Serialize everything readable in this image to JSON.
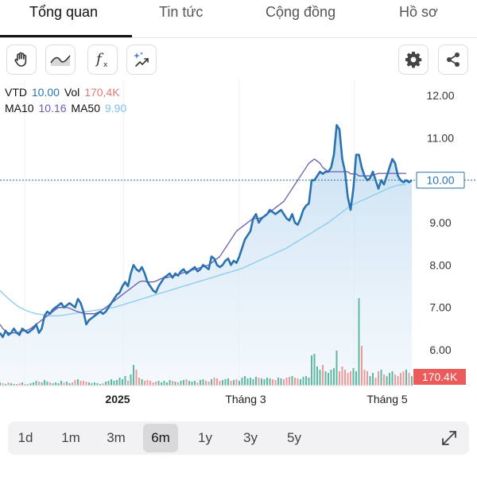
{
  "tabs": [
    {
      "label": "Tổng quan",
      "active": true
    },
    {
      "label": "Tin tức",
      "active": false
    },
    {
      "label": "Cộng đồng",
      "active": false
    },
    {
      "label": "Hồ sơ",
      "active": false
    }
  ],
  "toolbar": {
    "left_icons": [
      "hand-icon",
      "area-chart-icon",
      "function-icon",
      "sparkle-chart-icon"
    ],
    "right_icons": [
      "gear-icon",
      "share-icon"
    ]
  },
  "legend": {
    "symbol": "VTD",
    "price": "10.00",
    "vol_label": "Vol",
    "vol": "170,4K",
    "ma10_label": "MA10",
    "ma10": "10.16",
    "ma50_label": "MA50",
    "ma50": "9.90"
  },
  "chart_data": {
    "type": "line",
    "y_axis_ticks": [
      "12.00",
      "11.00",
      "10.00",
      "9.00",
      "8.00",
      "7.00",
      "6.00"
    ],
    "ylim": [
      5.2,
      12.5
    ],
    "current_price_label": "10.00",
    "volume_badge": "170.4K",
    "x_tick_labels": [
      "2025",
      "Tháng 3",
      "Tháng 5"
    ],
    "colors": {
      "price": "#2a73b0",
      "ma10": "#6c5cb0",
      "ma50": "#8fcdee",
      "up": "#5fb8a2",
      "down": "#ee9a9a",
      "badge": "#ec5b5b"
    },
    "series": [
      {
        "name": "VTD",
        "values": [
          6.4,
          6.3,
          6.45,
          6.35,
          6.4,
          6.5,
          6.4,
          6.35,
          6.5,
          6.45,
          6.4,
          6.45,
          6.5,
          6.6,
          6.4,
          6.5,
          6.8,
          6.9,
          6.85,
          6.95,
          7.0,
          7.05,
          7.1,
          7.0,
          7.05,
          7.1,
          7.05,
          7.0,
          7.2,
          7.1,
          6.9,
          6.6,
          6.7,
          6.75,
          6.8,
          6.85,
          6.9,
          6.85,
          6.9,
          7.0,
          7.1,
          7.2,
          7.3,
          7.35,
          7.5,
          7.6,
          7.5,
          7.8,
          8.0,
          7.9,
          7.85,
          7.95,
          7.8,
          7.6,
          7.5,
          7.4,
          7.35,
          7.5,
          7.6,
          7.7,
          7.75,
          7.8,
          7.7,
          7.8,
          7.75,
          7.85,
          7.9,
          7.8,
          7.85,
          7.9,
          7.95,
          7.85,
          7.9,
          8.0,
          7.95,
          7.9,
          8.2,
          8.15,
          8.0,
          7.95,
          8.0,
          8.1,
          8.15,
          8.0,
          8.1,
          8.05,
          8.2,
          8.4,
          8.6,
          8.7,
          8.8,
          9.1,
          9.2,
          9.0,
          9.1,
          9.15,
          9.2,
          9.3,
          9.25,
          9.2,
          9.25,
          9.3,
          9.2,
          9.1,
          9.05,
          9.2,
          9.0,
          8.95,
          9.1,
          9.3,
          9.4,
          9.45,
          10.0,
          10.0,
          10.1,
          10.2,
          10.15,
          10.2,
          10.2,
          10.3,
          10.6,
          11.3,
          11.2,
          10.5,
          10.2,
          9.6,
          9.3,
          9.8,
          10.6,
          10.6,
          10.3,
          10.1,
          10.0,
          10.05,
          10.2,
          10.0,
          9.8,
          10.0,
          9.9,
          10.1,
          10.3,
          10.5,
          10.4,
          10.1,
          10.0,
          9.95,
          10.0,
          9.95,
          10.0
        ]
      },
      {
        "name": "MA10",
        "values": [
          6.6,
          6.5,
          6.45,
          6.4,
          6.4,
          6.4,
          6.4,
          6.42,
          6.44,
          6.45,
          6.47,
          6.5,
          6.55,
          6.6,
          6.65,
          6.7,
          6.75,
          6.8,
          6.85,
          6.9,
          6.95,
          7.0,
          7.0,
          7.0,
          7.0,
          6.98,
          6.95,
          6.92,
          6.9,
          6.88,
          6.86,
          6.85,
          6.85,
          6.85,
          6.85,
          6.88,
          6.9,
          6.95,
          7.0,
          7.05,
          7.1,
          7.15,
          7.2,
          7.25,
          7.3,
          7.35,
          7.4,
          7.45,
          7.5,
          7.55,
          7.6,
          7.62,
          7.62,
          7.6,
          7.6,
          7.6,
          7.62,
          7.65,
          7.68,
          7.7,
          7.7,
          7.72,
          7.74,
          7.75,
          7.77,
          7.8,
          7.82,
          7.84,
          7.86,
          7.88,
          7.9,
          7.92,
          7.94,
          7.96,
          7.98,
          8.0,
          8.05,
          8.1,
          8.15,
          8.2,
          8.3,
          8.4,
          8.5,
          8.6,
          8.7,
          8.8,
          8.85,
          8.9,
          8.95,
          9.0,
          9.05,
          9.1,
          9.1,
          9.1,
          9.12,
          9.15,
          9.2,
          9.25,
          9.3,
          9.35,
          9.4,
          9.45,
          9.5,
          9.6,
          9.7,
          9.8,
          9.9,
          10.0,
          10.1,
          10.2,
          10.3,
          10.4,
          10.45,
          10.5,
          10.45,
          10.4,
          10.3,
          10.25,
          10.2,
          10.2,
          10.2,
          10.2,
          10.2,
          10.2,
          10.2,
          10.2,
          10.15,
          10.15,
          10.15,
          10.1,
          10.1,
          10.1,
          10.1,
          10.1,
          10.12,
          10.14,
          10.16,
          10.16,
          10.16,
          10.16,
          10.16,
          10.16,
          10.16,
          10.16,
          10.16,
          10.16,
          10.16
        ]
      },
      {
        "name": "MA50",
        "values": [
          7.4,
          7.33,
          7.27,
          7.21,
          7.15,
          7.1,
          7.05,
          7.0,
          6.97,
          6.94,
          6.91,
          6.89,
          6.87,
          6.85,
          6.84,
          6.83,
          6.82,
          6.81,
          6.8,
          6.8,
          6.8,
          6.8,
          6.81,
          6.82,
          6.83,
          6.84,
          6.85,
          6.86,
          6.87,
          6.88,
          6.89,
          6.9,
          6.91,
          6.92,
          6.93,
          6.94,
          6.95,
          6.96,
          6.97,
          6.98,
          6.99,
          7.0,
          7.02,
          7.04,
          7.06,
          7.08,
          7.1,
          7.12,
          7.14,
          7.16,
          7.18,
          7.2,
          7.22,
          7.24,
          7.26,
          7.28,
          7.3,
          7.32,
          7.34,
          7.36,
          7.38,
          7.4,
          7.42,
          7.44,
          7.46,
          7.48,
          7.5,
          7.52,
          7.54,
          7.56,
          7.58,
          7.6,
          7.62,
          7.64,
          7.66,
          7.68,
          7.7,
          7.72,
          7.74,
          7.76,
          7.78,
          7.8,
          7.82,
          7.84,
          7.86,
          7.88,
          7.9,
          7.92,
          7.95,
          7.98,
          8.01,
          8.04,
          8.07,
          8.1,
          8.13,
          8.16,
          8.19,
          8.22,
          8.25,
          8.28,
          8.31,
          8.34,
          8.37,
          8.4,
          8.44,
          8.48,
          8.52,
          8.56,
          8.6,
          8.64,
          8.68,
          8.72,
          8.76,
          8.8,
          8.84,
          8.88,
          8.92,
          8.96,
          9.0,
          9.05,
          9.1,
          9.15,
          9.2,
          9.25,
          9.3,
          9.35,
          9.4,
          9.43,
          9.46,
          9.49,
          9.52,
          9.55,
          9.58,
          9.61,
          9.64,
          9.67,
          9.7,
          9.73,
          9.76,
          9.79,
          9.82,
          9.84,
          9.86,
          9.88,
          9.89,
          9.9,
          9.9
        ]
      },
      {
        "name": "Vol",
        "values": [
          0.2,
          0.15,
          0.1,
          0.2,
          0.15,
          0.1,
          0.1,
          0.15,
          0.2,
          0.1,
          0.1,
          0.15,
          0.2,
          0.3,
          0.25,
          0.2,
          0.35,
          0.25,
          0.2,
          0.15,
          0.2,
          0.15,
          0.3,
          0.2,
          0.25,
          0.15,
          0.2,
          0.35,
          0.4,
          0.3,
          0.3,
          0.25,
          0.2,
          0.15,
          0.2,
          0.15,
          0.1,
          0.15,
          0.25,
          0.3,
          0.4,
          0.3,
          0.35,
          0.5,
          0.4,
          0.6,
          0.3,
          0.7,
          1.3,
          1.0,
          0.5,
          0.4,
          0.3,
          0.35,
          0.3,
          0.2,
          0.25,
          0.3,
          0.2,
          0.3,
          0.2,
          0.35,
          0.3,
          0.25,
          0.2,
          0.3,
          0.35,
          0.4,
          0.3,
          0.25,
          0.3,
          0.2,
          0.35,
          0.4,
          0.3,
          0.25,
          0.4,
          0.5,
          0.45,
          0.3,
          0.35,
          0.4,
          0.45,
          0.3,
          0.35,
          0.4,
          0.3,
          0.5,
          0.6,
          0.45,
          0.5,
          0.4,
          0.55,
          0.5,
          0.45,
          0.4,
          0.5,
          0.45,
          0.4,
          0.35,
          0.5,
          0.45,
          0.4,
          0.5,
          0.55,
          0.6,
          0.5,
          0.45,
          0.4,
          0.55,
          0.6,
          0.5,
          1.9,
          2.0,
          1.2,
          1.0,
          1.3,
          0.9,
          0.8,
          1.0,
          1.1,
          2.2,
          0.9,
          1.2,
          1.0,
          0.8,
          0.9,
          1.1,
          0.9,
          5.5,
          2.5,
          1.0,
          0.9,
          0.6,
          0.8,
          0.5,
          0.9,
          1.0,
          0.7,
          0.6,
          0.8,
          0.9,
          0.7,
          0.6,
          0.8,
          0.9,
          1.0,
          0.8,
          0.6
        ]
      }
    ]
  },
  "ranges": [
    {
      "label": "1d",
      "active": false
    },
    {
      "label": "1m",
      "active": false
    },
    {
      "label": "3m",
      "active": false
    },
    {
      "label": "6m",
      "active": true
    },
    {
      "label": "1y",
      "active": false
    },
    {
      "label": "3y",
      "active": false
    },
    {
      "label": "5y",
      "active": false
    }
  ]
}
